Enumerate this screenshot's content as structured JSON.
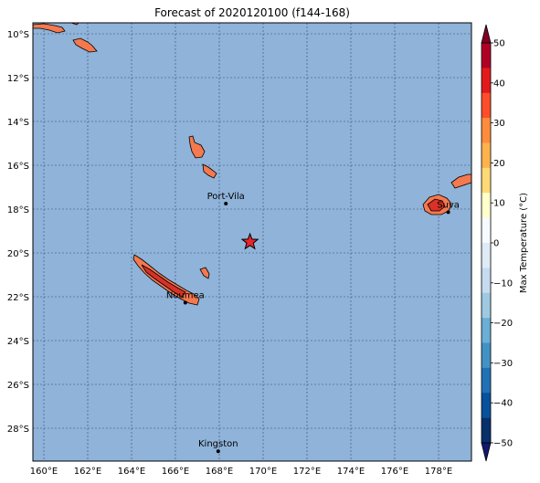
{
  "title": "Forecast of 2020120100 (f144-168)",
  "colors": {
    "ocean": "#8fb3d9",
    "grid": "#3a4a6a",
    "land_warm": "#f4794f",
    "land_hot": "#d93127",
    "marker": "#e8262a"
  },
  "map": {
    "lon_range": [
      159.5,
      179.5
    ],
    "lat_range": [
      -29.5,
      -9.5
    ],
    "x_ticks": [
      {
        "value": 160,
        "label": "160°E"
      },
      {
        "value": 162,
        "label": "162°E"
      },
      {
        "value": 164,
        "label": "164°E"
      },
      {
        "value": 166,
        "label": "166°E"
      },
      {
        "value": 168,
        "label": "168°E"
      },
      {
        "value": 170,
        "label": "170°E"
      },
      {
        "value": 172,
        "label": "172°E"
      },
      {
        "value": 174,
        "label": "174°E"
      },
      {
        "value": 176,
        "label": "176°E"
      },
      {
        "value": 178,
        "label": "178°E"
      }
    ],
    "y_ticks": [
      {
        "value": -10,
        "label": "10°S"
      },
      {
        "value": -12,
        "label": "12°S"
      },
      {
        "value": -14,
        "label": "14°S"
      },
      {
        "value": -16,
        "label": "16°S"
      },
      {
        "value": -18,
        "label": "18°S"
      },
      {
        "value": -20,
        "label": "20°S"
      },
      {
        "value": -22,
        "label": "22°S"
      },
      {
        "value": -24,
        "label": "24°S"
      },
      {
        "value": -26,
        "label": "26°S"
      },
      {
        "value": -28,
        "label": "28°S"
      }
    ],
    "grid": "dashed",
    "cities": [
      {
        "name": "Port-Vila",
        "lon": 168.3,
        "lat": -17.75
      },
      {
        "name": "Noumea",
        "lon": 166.45,
        "lat": -22.27
      },
      {
        "name": "Suva",
        "lon": 178.44,
        "lat": -18.14
      },
      {
        "name": "Kingston",
        "lon": 167.95,
        "lat": -29.05
      }
    ],
    "marker": {
      "symbol": "star",
      "lon": 169.4,
      "lat": -19.5
    }
  },
  "colorbar": {
    "label": "Max Temperature (°C)",
    "ticks": [
      "50",
      "40",
      "30",
      "20",
      "10",
      "0",
      "−10",
      "−20",
      "−30",
      "−40",
      "−50"
    ],
    "colors": [
      "#800026",
      "#b10026",
      "#e31a1c",
      "#fc4e2a",
      "#fd8d3c",
      "#feb24c",
      "#fed976",
      "#ffffcc",
      "#f7fbff",
      "#deebf7",
      "#c6dbef",
      "#9ecae1",
      "#6baed6",
      "#4292c6",
      "#2171b5",
      "#08519c",
      "#08306b",
      "#131870"
    ]
  }
}
